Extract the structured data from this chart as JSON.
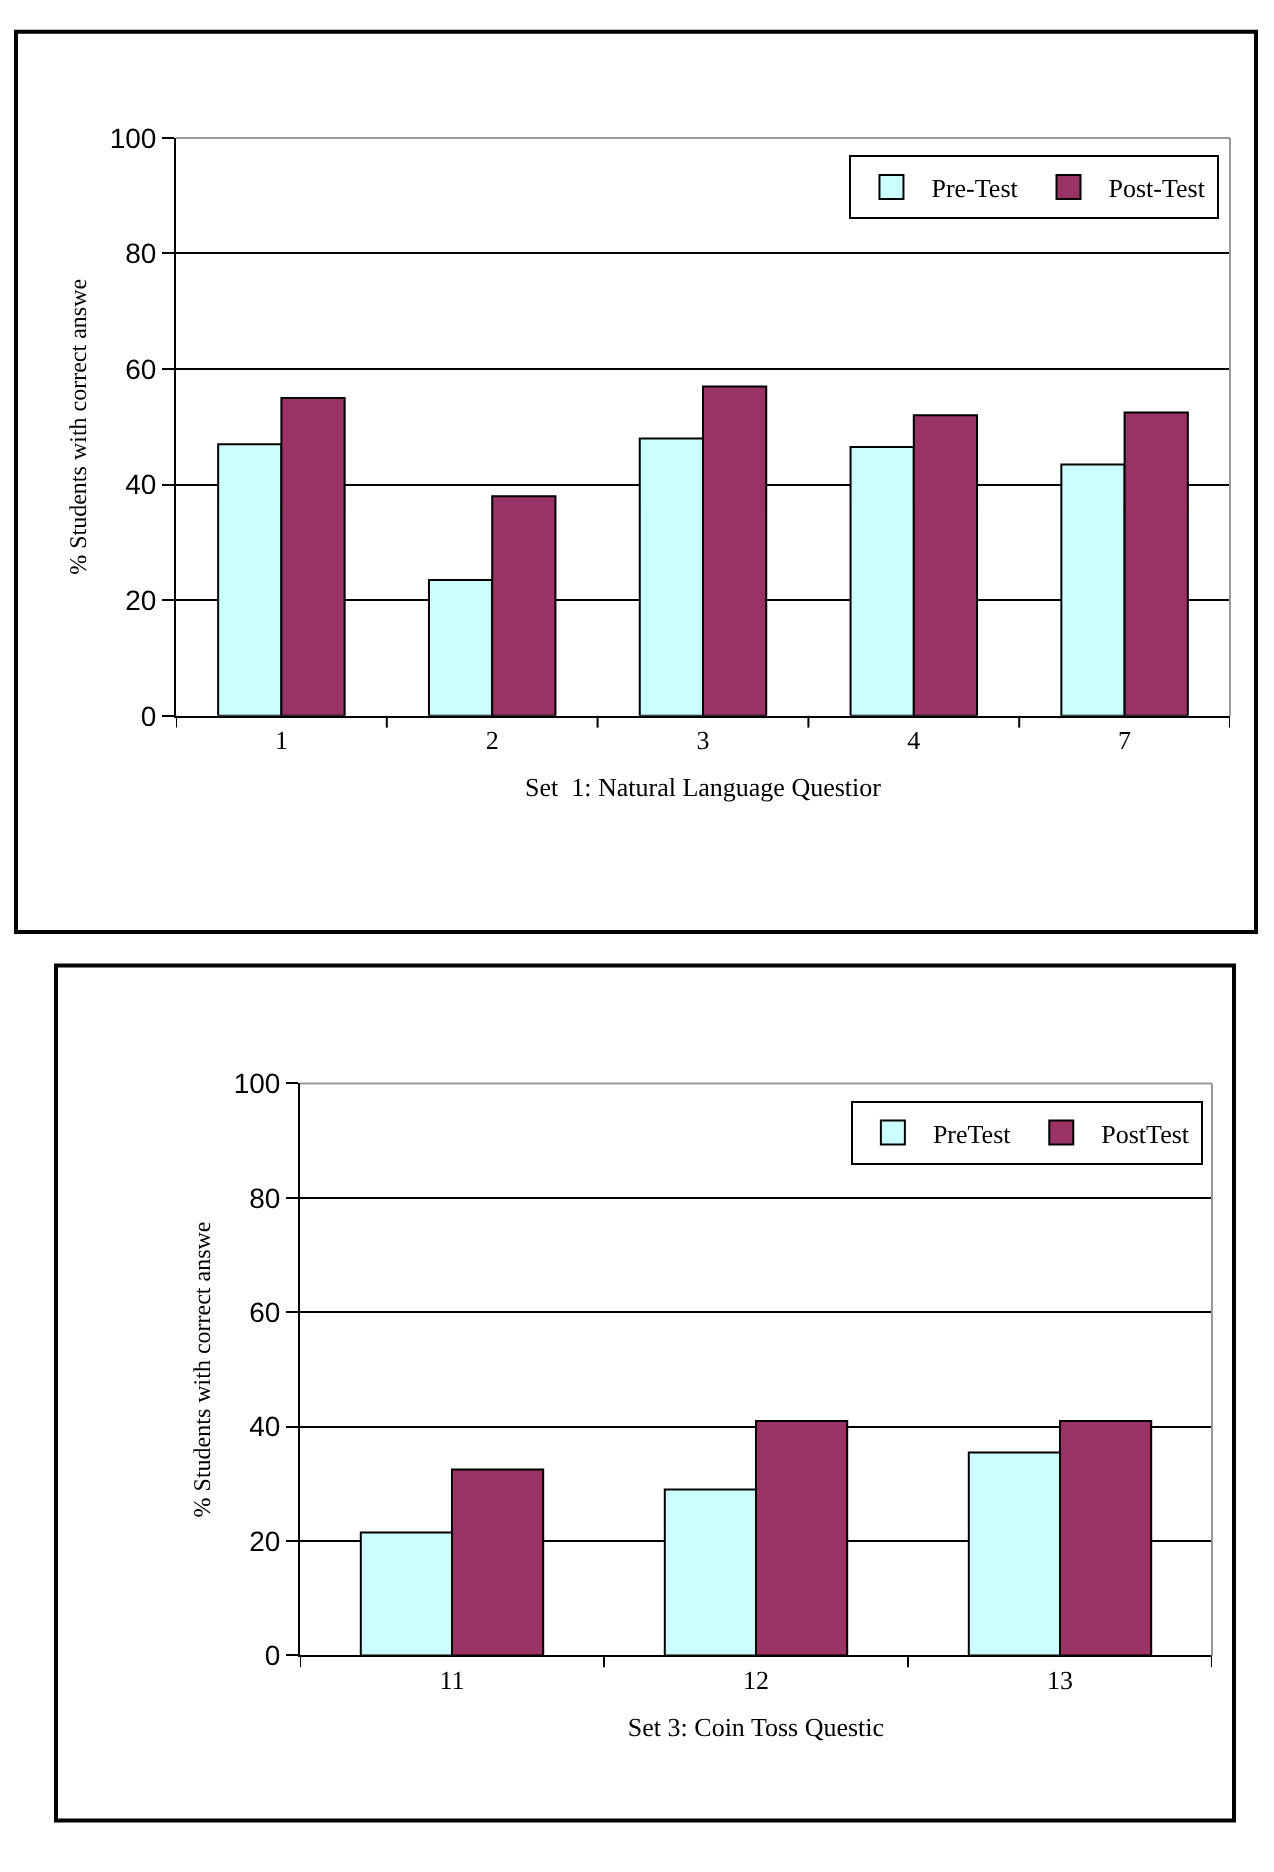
{
  "chart_data": [
    {
      "type": "bar",
      "xlabel": "Set  1: Natural Language Questior",
      "ylabel": "% Students with correct answe",
      "categories": [
        "1",
        "2",
        "3",
        "4",
        "7"
      ],
      "series": [
        {
          "name": "Pre-Test",
          "color": "#ccffff",
          "values": [
            47,
            23.5,
            48,
            46.5,
            43.5
          ]
        },
        {
          "name": "Post-Test",
          "color": "#993366",
          "values": [
            55,
            38,
            57,
            52,
            52.5
          ]
        }
      ],
      "ylim": [
        0,
        100
      ],
      "yticks": [
        0,
        20,
        40,
        60,
        80,
        100
      ],
      "grid": "y",
      "legend": "top right"
    },
    {
      "type": "bar",
      "xlabel": "Set 3: Coin Toss Questic",
      "ylabel": "% Students with correct answe",
      "categories": [
        "11",
        "12",
        "13"
      ],
      "series": [
        {
          "name": "PreTest",
          "color": "#ccffff",
          "values": [
            21.5,
            29,
            35.5
          ]
        },
        {
          "name": "PostTest",
          "color": "#993366",
          "values": [
            32.5,
            41,
            41
          ]
        }
      ],
      "ylim": [
        0,
        100
      ],
      "yticks": [
        0,
        20,
        40,
        60,
        80,
        100
      ],
      "grid": "y",
      "legend": "top right"
    }
  ]
}
